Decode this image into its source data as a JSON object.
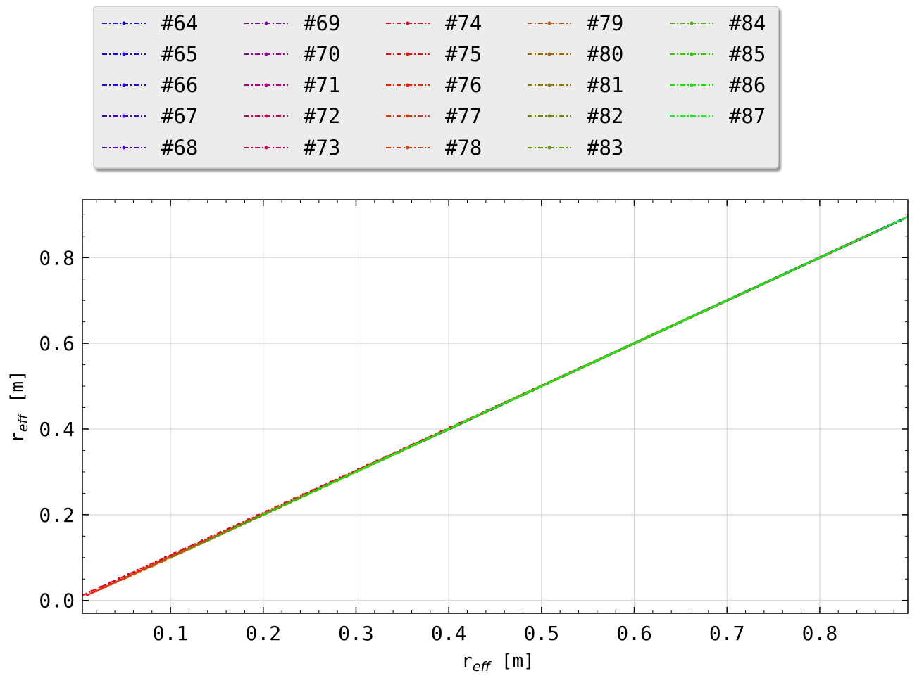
{
  "chart_data": {
    "type": "line",
    "title": "",
    "xlabel": {
      "base": "r",
      "sub": "eff",
      "unit": " [m]"
    },
    "ylabel": {
      "base": "r",
      "sub": "eff",
      "unit": " [m]"
    },
    "xlim": [
      0.005,
      0.895
    ],
    "ylim": [
      -0.03,
      0.935
    ],
    "xticks": [
      0.1,
      0.2,
      0.3,
      0.4,
      0.5,
      0.6,
      0.7,
      0.8
    ],
    "xtick_labels": [
      "0.1",
      "0.2",
      "0.3",
      "0.4",
      "0.5",
      "0.6",
      "0.7",
      "0.8"
    ],
    "yticks": [
      0.0,
      0.2,
      0.4,
      0.6,
      0.8
    ],
    "ytick_labels": [
      "0.0",
      "0.2",
      "0.4",
      "0.6",
      "0.8"
    ],
    "grid": true,
    "legend_position": "above",
    "legend_columns": 5,
    "series": [
      {
        "name": "#64",
        "color": "#0a0af0",
        "x": [
          0.4,
          0.895
        ],
        "y": [
          0.4,
          0.895
        ]
      },
      {
        "name": "#65",
        "color": "#1405e6",
        "x": [
          0.39,
          0.89
        ],
        "y": [
          0.39,
          0.89
        ]
      },
      {
        "name": "#66",
        "color": "#2800dc",
        "x": [
          0.38,
          0.885
        ],
        "y": [
          0.38,
          0.885
        ]
      },
      {
        "name": "#67",
        "color": "#3c00d2",
        "x": [
          0.37,
          0.88
        ],
        "y": [
          0.37,
          0.88
        ]
      },
      {
        "name": "#68",
        "color": "#5000c8",
        "x": [
          0.36,
          0.875
        ],
        "y": [
          0.36,
          0.875
        ]
      },
      {
        "name": "#69",
        "color": "#7a00aa",
        "x": [
          0.35,
          0.87
        ],
        "y": [
          0.35,
          0.87
        ]
      },
      {
        "name": "#70",
        "color": "#96009a",
        "x": [
          0.34,
          0.865
        ],
        "y": [
          0.34,
          0.865
        ]
      },
      {
        "name": "#71",
        "color": "#b00080",
        "x": [
          0.33,
          0.86
        ],
        "y": [
          0.33,
          0.86
        ]
      },
      {
        "name": "#72",
        "color": "#c30060",
        "x": [
          0.32,
          0.855
        ],
        "y": [
          0.32,
          0.855
        ]
      },
      {
        "name": "#73",
        "color": "#d20040",
        "x": [
          0.31,
          0.85
        ],
        "y": [
          0.31,
          0.85
        ]
      },
      {
        "name": "#74",
        "color": "#e4001e",
        "x": [
          0.005,
          0.6
        ],
        "y": [
          0.012,
          0.6
        ]
      },
      {
        "name": "#75",
        "color": "#f00a0a",
        "x": [
          0.01,
          0.62
        ],
        "y": [
          0.012,
          0.62
        ]
      },
      {
        "name": "#76",
        "color": "#f01e00",
        "x": [
          0.015,
          0.64
        ],
        "y": [
          0.017,
          0.64
        ]
      },
      {
        "name": "#77",
        "color": "#e63200",
        "x": [
          0.02,
          0.66
        ],
        "y": [
          0.022,
          0.66
        ]
      },
      {
        "name": "#78",
        "color": "#dc3c00",
        "x": [
          0.03,
          0.68
        ],
        "y": [
          0.032,
          0.68
        ]
      },
      {
        "name": "#79",
        "color": "#c85000",
        "x": [
          0.05,
          0.7
        ],
        "y": [
          0.05,
          0.7
        ]
      },
      {
        "name": "#80",
        "color": "#aa6400",
        "x": [
          0.08,
          0.72
        ],
        "y": [
          0.08,
          0.72
        ]
      },
      {
        "name": "#81",
        "color": "#8c7800",
        "x": [
          0.1,
          0.74
        ],
        "y": [
          0.1,
          0.74
        ]
      },
      {
        "name": "#82",
        "color": "#6e8c00",
        "x": [
          0.12,
          0.76
        ],
        "y": [
          0.12,
          0.76
        ]
      },
      {
        "name": "#83",
        "color": "#5aa000",
        "x": [
          0.14,
          0.78
        ],
        "y": [
          0.14,
          0.78
        ]
      },
      {
        "name": "#84",
        "color": "#46b400",
        "x": [
          0.17,
          0.82
        ],
        "y": [
          0.17,
          0.82
        ]
      },
      {
        "name": "#85",
        "color": "#32c800",
        "x": [
          0.2,
          0.86
        ],
        "y": [
          0.2,
          0.86
        ]
      },
      {
        "name": "#86",
        "color": "#1edc0a",
        "x": [
          0.25,
          0.89
        ],
        "y": [
          0.25,
          0.89
        ]
      },
      {
        "name": "#87",
        "color": "#14f014",
        "x": [
          0.3,
          0.895
        ],
        "y": [
          0.3,
          0.895
        ]
      }
    ]
  }
}
